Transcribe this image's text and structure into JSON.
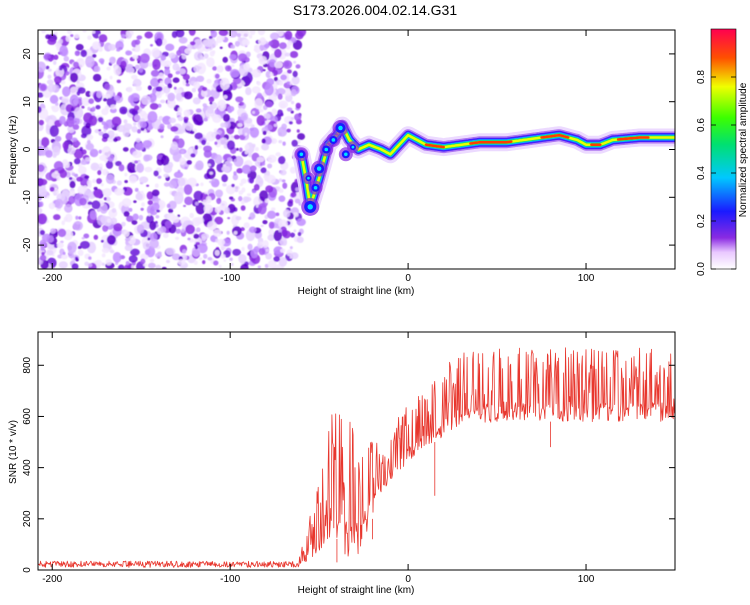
{
  "title": "S173.2026.004.02.14.G31",
  "colors": {
    "snr_line": "#e8362d",
    "axis": "#000000"
  },
  "chart_data": [
    {
      "type": "heatmap",
      "xlabel": "Height of straight line (km)",
      "ylabel": "Frequency (Hz)",
      "xlim": [
        -208,
        150
      ],
      "ylim": [
        -25,
        25
      ],
      "xticks": [
        -200,
        -100,
        0,
        100
      ],
      "yticks": [
        -20,
        -10,
        0,
        10,
        20
      ],
      "colorbar": {
        "label": "Normalized spectral amplitude",
        "range": [
          0.0,
          1.0
        ],
        "ticks": [
          "0.0",
          "0.2",
          "0.4",
          "0.6",
          "0.8"
        ],
        "colormap": "rainbow (magenta-blue-cyan-green-yellow-red)"
      },
      "noise_region_x": [
        -208,
        -60
      ],
      "ridge_track": [
        {
          "x": -60,
          "y": -1
        },
        {
          "x": -57,
          "y": -7
        },
        {
          "x": -55,
          "y": -12
        },
        {
          "x": -50,
          "y": -6
        },
        {
          "x": -45,
          "y": 1
        },
        {
          "x": -40,
          "y": 3
        },
        {
          "x": -37,
          "y": 5
        },
        {
          "x": -33,
          "y": 2
        },
        {
          "x": -28,
          "y": 0
        },
        {
          "x": -22,
          "y": 1
        },
        {
          "x": -15,
          "y": 0
        },
        {
          "x": -10,
          "y": -1
        },
        {
          "x": -5,
          "y": 1
        },
        {
          "x": 0,
          "y": 3
        },
        {
          "x": 5,
          "y": 2
        },
        {
          "x": 10,
          "y": 1
        },
        {
          "x": 20,
          "y": 0.5
        },
        {
          "x": 30,
          "y": 1
        },
        {
          "x": 40,
          "y": 1.5
        },
        {
          "x": 55,
          "y": 1.5
        },
        {
          "x": 65,
          "y": 2
        },
        {
          "x": 75,
          "y": 2.5
        },
        {
          "x": 85,
          "y": 3
        },
        {
          "x": 95,
          "y": 2
        },
        {
          "x": 100,
          "y": 1
        },
        {
          "x": 108,
          "y": 1
        },
        {
          "x": 115,
          "y": 2
        },
        {
          "x": 130,
          "y": 2.5
        },
        {
          "x": 150,
          "y": 2.5
        }
      ]
    },
    {
      "type": "line",
      "xlabel": "Height of straight line (km)",
      "ylabel": "SNR (10 * v/v)",
      "xlim": [
        -208,
        150
      ],
      "ylim": [
        0,
        930
      ],
      "xticks": [
        -200,
        -100,
        0,
        100
      ],
      "yticks": [
        0,
        200,
        400,
        600,
        800
      ],
      "series": [
        {
          "name": "SNR",
          "envelope": [
            {
              "x": -208,
              "base": 10,
              "peak": 35
            },
            {
              "x": -62,
              "base": 10,
              "peak": 35
            },
            {
              "x": -48,
              "base": 80,
              "peak": 400
            },
            {
              "x": -42,
              "base": 150,
              "peak": 650
            },
            {
              "x": -35,
              "base": 50,
              "peak": 620
            },
            {
              "x": -28,
              "base": 60,
              "peak": 550
            },
            {
              "x": -20,
              "base": 200,
              "peak": 500
            },
            {
              "x": -10,
              "base": 350,
              "peak": 550
            },
            {
              "x": 0,
              "base": 420,
              "peak": 650
            },
            {
              "x": 10,
              "base": 480,
              "peak": 700
            },
            {
              "x": 20,
              "base": 520,
              "peak": 800
            },
            {
              "x": 30,
              "base": 560,
              "peak": 850
            },
            {
              "x": 50,
              "base": 580,
              "peak": 890
            },
            {
              "x": 80,
              "base": 580,
              "peak": 870
            },
            {
              "x": 110,
              "base": 580,
              "peak": 870
            },
            {
              "x": 150,
              "base": 580,
              "peak": 880
            }
          ]
        }
      ]
    }
  ]
}
